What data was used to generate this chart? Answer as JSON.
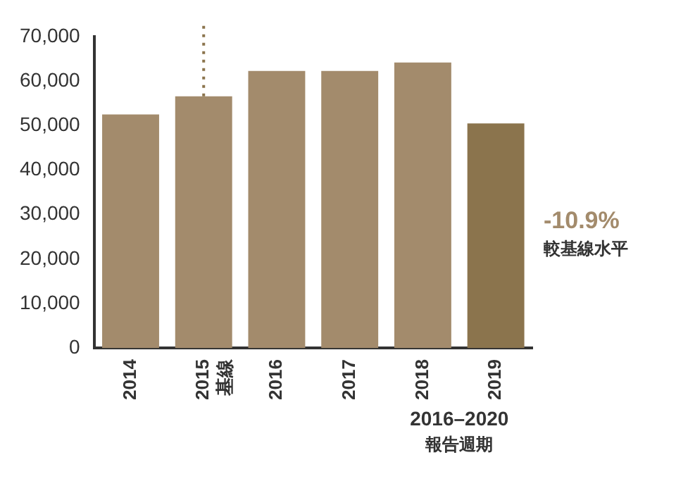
{
  "chart_data": {
    "type": "bar",
    "categories": [
      "2014",
      "2015\n基線",
      "2016",
      "2017",
      "2018",
      "2019"
    ],
    "values": [
      52500,
      56600,
      62300,
      62300,
      64200,
      50500
    ],
    "colors": [
      "#a38b6c",
      "#a38b6c",
      "#a38b6c",
      "#a38b6c",
      "#a38b6c",
      "#8b744d"
    ],
    "ylim": [
      0,
      70000
    ],
    "yticks": [
      {
        "value": 0,
        "label": "0"
      },
      {
        "value": 10000,
        "label": "10,000"
      },
      {
        "value": 20000,
        "label": "20,000"
      },
      {
        "value": 30000,
        "label": "30,000"
      },
      {
        "value": 40000,
        "label": "40,000"
      },
      {
        "value": 50000,
        "label": "50,000"
      },
      {
        "value": 60000,
        "label": "60,000"
      },
      {
        "value": 70000,
        "label": "70,000"
      }
    ],
    "grid": false,
    "legend": false,
    "ref_lines": [
      {
        "axis": "x",
        "value": "2015\n基線",
        "color": "#8b744d",
        "line_style": "dotted"
      }
    ],
    "annotations": [
      "-10.9%",
      "較基線水平",
      "2016–2020",
      "報告週期"
    ]
  }
}
